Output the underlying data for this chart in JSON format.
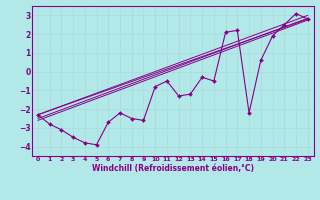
{
  "xlabel": "Windchill (Refroidissement éolien,°C)",
  "background_color": "#b2e8e8",
  "grid_color": "#c8e8e8",
  "line_color": "#880088",
  "xlim": [
    -0.5,
    23.5
  ],
  "ylim": [
    -4.5,
    3.5
  ],
  "yticks": [
    -4,
    -3,
    -2,
    -1,
    0,
    1,
    2,
    3
  ],
  "xticks": [
    0,
    1,
    2,
    3,
    4,
    5,
    6,
    7,
    8,
    9,
    10,
    11,
    12,
    13,
    14,
    15,
    16,
    17,
    18,
    19,
    20,
    21,
    22,
    23
  ],
  "x_data": [
    0,
    1,
    2,
    3,
    4,
    5,
    6,
    7,
    8,
    9,
    10,
    11,
    12,
    13,
    14,
    15,
    16,
    17,
    18,
    19,
    20,
    21,
    22,
    23
  ],
  "y_data": [
    -2.3,
    -2.8,
    -3.1,
    -3.5,
    -3.8,
    -3.9,
    -2.7,
    -2.2,
    -2.5,
    -2.6,
    -0.8,
    -0.5,
    -1.3,
    -1.2,
    -0.3,
    -0.5,
    2.1,
    2.2,
    -2.2,
    0.6,
    1.9,
    2.5,
    3.1,
    2.8
  ],
  "straight_lines": [
    {
      "x0": 0,
      "y0": -2.3,
      "x1": 23,
      "y1": 2.8
    },
    {
      "x0": 0,
      "y0": -2.3,
      "x1": 23,
      "y1": 3.0
    },
    {
      "x0": 0,
      "y0": -2.5,
      "x1": 23,
      "y1": 2.85
    },
    {
      "x0": 0,
      "y0": -2.6,
      "x1": 23,
      "y1": 2.75
    }
  ]
}
